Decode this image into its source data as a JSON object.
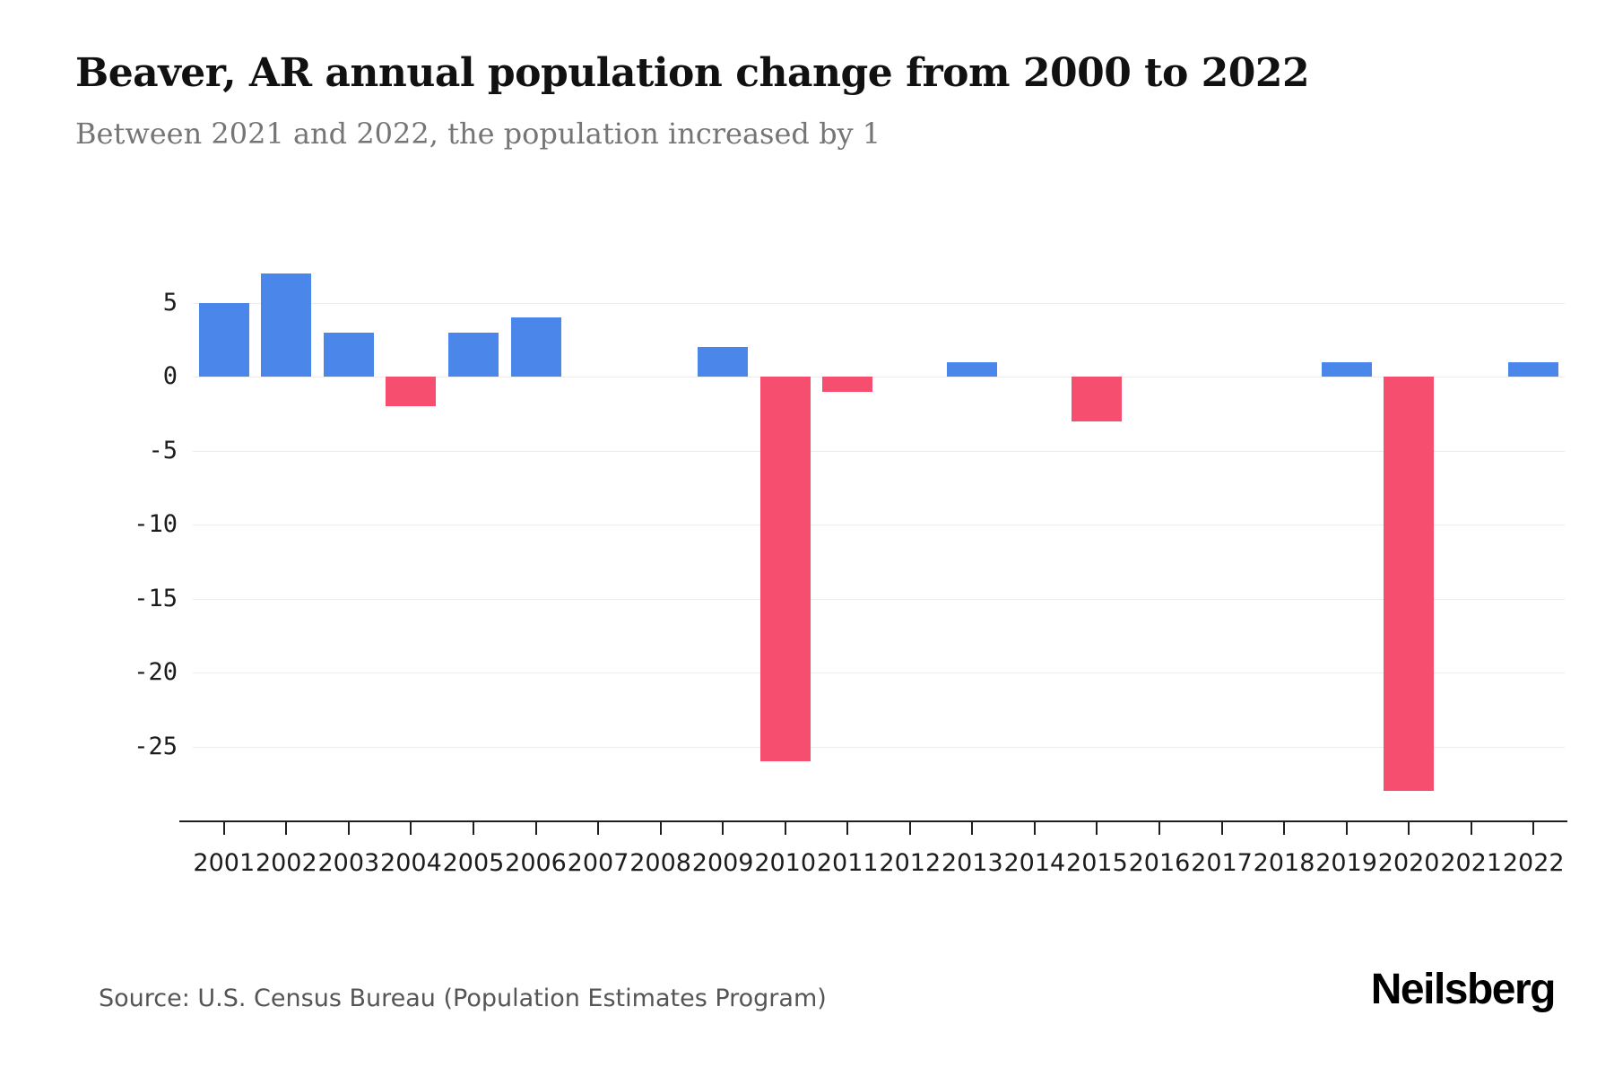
{
  "header": {
    "title": "Beaver, AR annual population change from 2000 to 2022",
    "subtitle": "Between 2021 and 2022, the population increased by 1"
  },
  "footer": {
    "source": "Source: U.S. Census Bureau (Population Estimates Program)",
    "brand": "Neilsberg"
  },
  "chart_data": {
    "type": "bar",
    "title": "Beaver, AR annual population change from 2000 to 2022",
    "subtitle": "Between 2021 and 2022, the population increased by 1",
    "categories": [
      "2001",
      "2002",
      "2003",
      "2004",
      "2005",
      "2006",
      "2007",
      "2008",
      "2009",
      "2010",
      "2011",
      "2012",
      "2013",
      "2014",
      "2015",
      "2016",
      "2017",
      "2018",
      "2019",
      "2020",
      "2021",
      "2022"
    ],
    "values": [
      5,
      7,
      3,
      -2,
      3,
      4,
      0,
      0,
      2,
      -26,
      -1,
      0,
      1,
      0,
      -3,
      0,
      0,
      0,
      1,
      -28,
      0,
      1
    ],
    "xlabel": "",
    "ylabel": "",
    "yticks": [
      5,
      0,
      -5,
      -10,
      -15,
      -20,
      -25
    ],
    "ylim": [
      -30,
      8
    ],
    "grid": true,
    "legend": false,
    "colors": {
      "positive": "#4b87ea",
      "negative": "#f64e6e",
      "grid": "#ececec",
      "axis": "#1f1f1f",
      "tick_label": "#1c1c1c"
    }
  }
}
